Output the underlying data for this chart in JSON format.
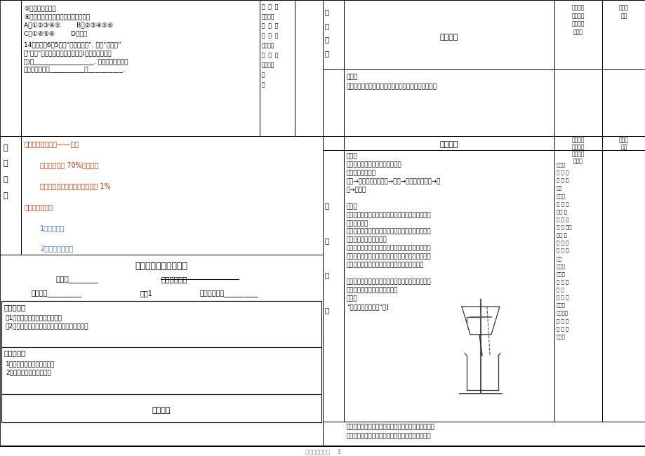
{
  "bg_color": "#ffffff",
  "border_color": "#000000",
  "text_color": "#000000",
  "red_color": "#cc3300",
  "blue_color": "#4472c4",
  "gray_text": "#888888",
  "page_footer": "初中化学导学案    3",
  "board_lines": [
    {
      "text": "一、水资源的分布——不均",
      "color": "#cc3300",
      "indent": 0
    },
    {
      "text": "",
      "color": "#000000",
      "indent": 0
    },
    {
      "text": "丰富性：地球 70%被水覆盖",
      "color": "#cc3300",
      "indent": 1
    },
    {
      "text": "",
      "color": "#000000",
      "indent": 0
    },
    {
      "text": "有限性：可利用的淡水资源不足 1%",
      "color": "#cc3300",
      "indent": 1
    },
    {
      "text": "",
      "color": "#000000",
      "indent": 0
    },
    {
      "text": "二、爱护水资源",
      "color": "#cc3300",
      "indent": 0
    },
    {
      "text": "",
      "color": "#000000",
      "indent": 0
    },
    {
      "text": "1、节约用水",
      "color": "#4472c4",
      "indent": 1
    },
    {
      "text": "",
      "color": "#000000",
      "indent": 0
    },
    {
      "text": "2、防止水体污染",
      "color": "#4472c4",
      "indent": 1
    }
  ],
  "right_notes1": [
    "节  约  用",
    "水，不向",
    "水  中  乱",
    "扔  废  弃",
    "物，不用",
    "含  磷  洗",
    "衣粉等、",
    "气",
    "水"
  ],
  "mid_content_right_lines": [
    "一贴：",
    "滤 纸 紧",
    "贴 漏 斗",
    "壁；",
    "二低：",
    "滤 纸 的",
    "边缘 要",
    "低 于 漏",
    "斗 边 缘；",
    "液面 要",
    "低 于 滤",
    "纸 的 边",
    "缘；",
    "三靠：",
    "口端靠",
    "斗 下 靠",
    "杯 内",
    "烧 杯 要",
    "紧靠玻",
    "璃棒；玻",
    "要 轻 斜",
    "靠 在 三",
    "层处。"
  ]
}
